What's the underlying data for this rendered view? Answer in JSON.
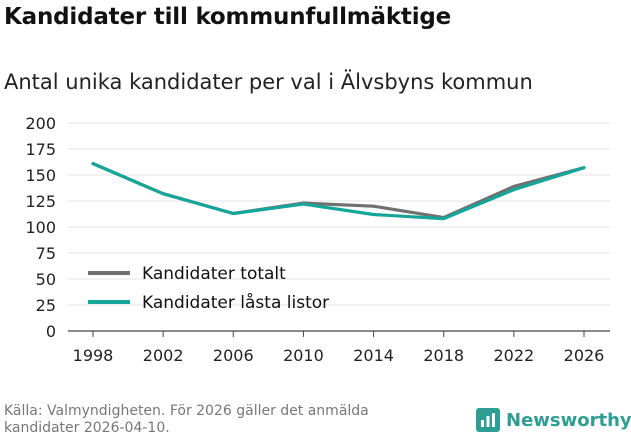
{
  "header": {
    "title": "Kandidater till kommunfullmäktige",
    "subtitle": "Antal unika kandidater per val i Älvsbyns kommun"
  },
  "footer": {
    "source": "Källa: Valmyndigheten. För 2026 gäller det anmälda kandidater 2026-04-10.",
    "brand": "Newsworthy"
  },
  "colors": {
    "total": "#707070",
    "locked": "#14a69a",
    "grid": "#e3e3e3",
    "brand": "#2e9e94"
  },
  "chart_data": {
    "type": "line",
    "title": "Kandidater till kommunfullmäktige",
    "subtitle": "Antal unika kandidater per val i Älvsbyns kommun",
    "xlabel": "",
    "ylabel": "",
    "categories": [
      "1998",
      "2002",
      "2006",
      "2010",
      "2014",
      "2018",
      "2022",
      "2026"
    ],
    "ylim": [
      0,
      200
    ],
    "yticks": [
      0,
      25,
      50,
      75,
      100,
      125,
      150,
      175,
      200
    ],
    "grid": true,
    "legend_position": "bottom-left",
    "series": [
      {
        "name": "Kandidater totalt",
        "color_key": "total",
        "values": [
          161,
          132,
          113,
          123,
          120,
          109,
          139,
          157
        ]
      },
      {
        "name": "Kandidater låsta listor",
        "color_key": "locked",
        "values": [
          161,
          132,
          113,
          122,
          112,
          108,
          136,
          157
        ]
      }
    ]
  }
}
